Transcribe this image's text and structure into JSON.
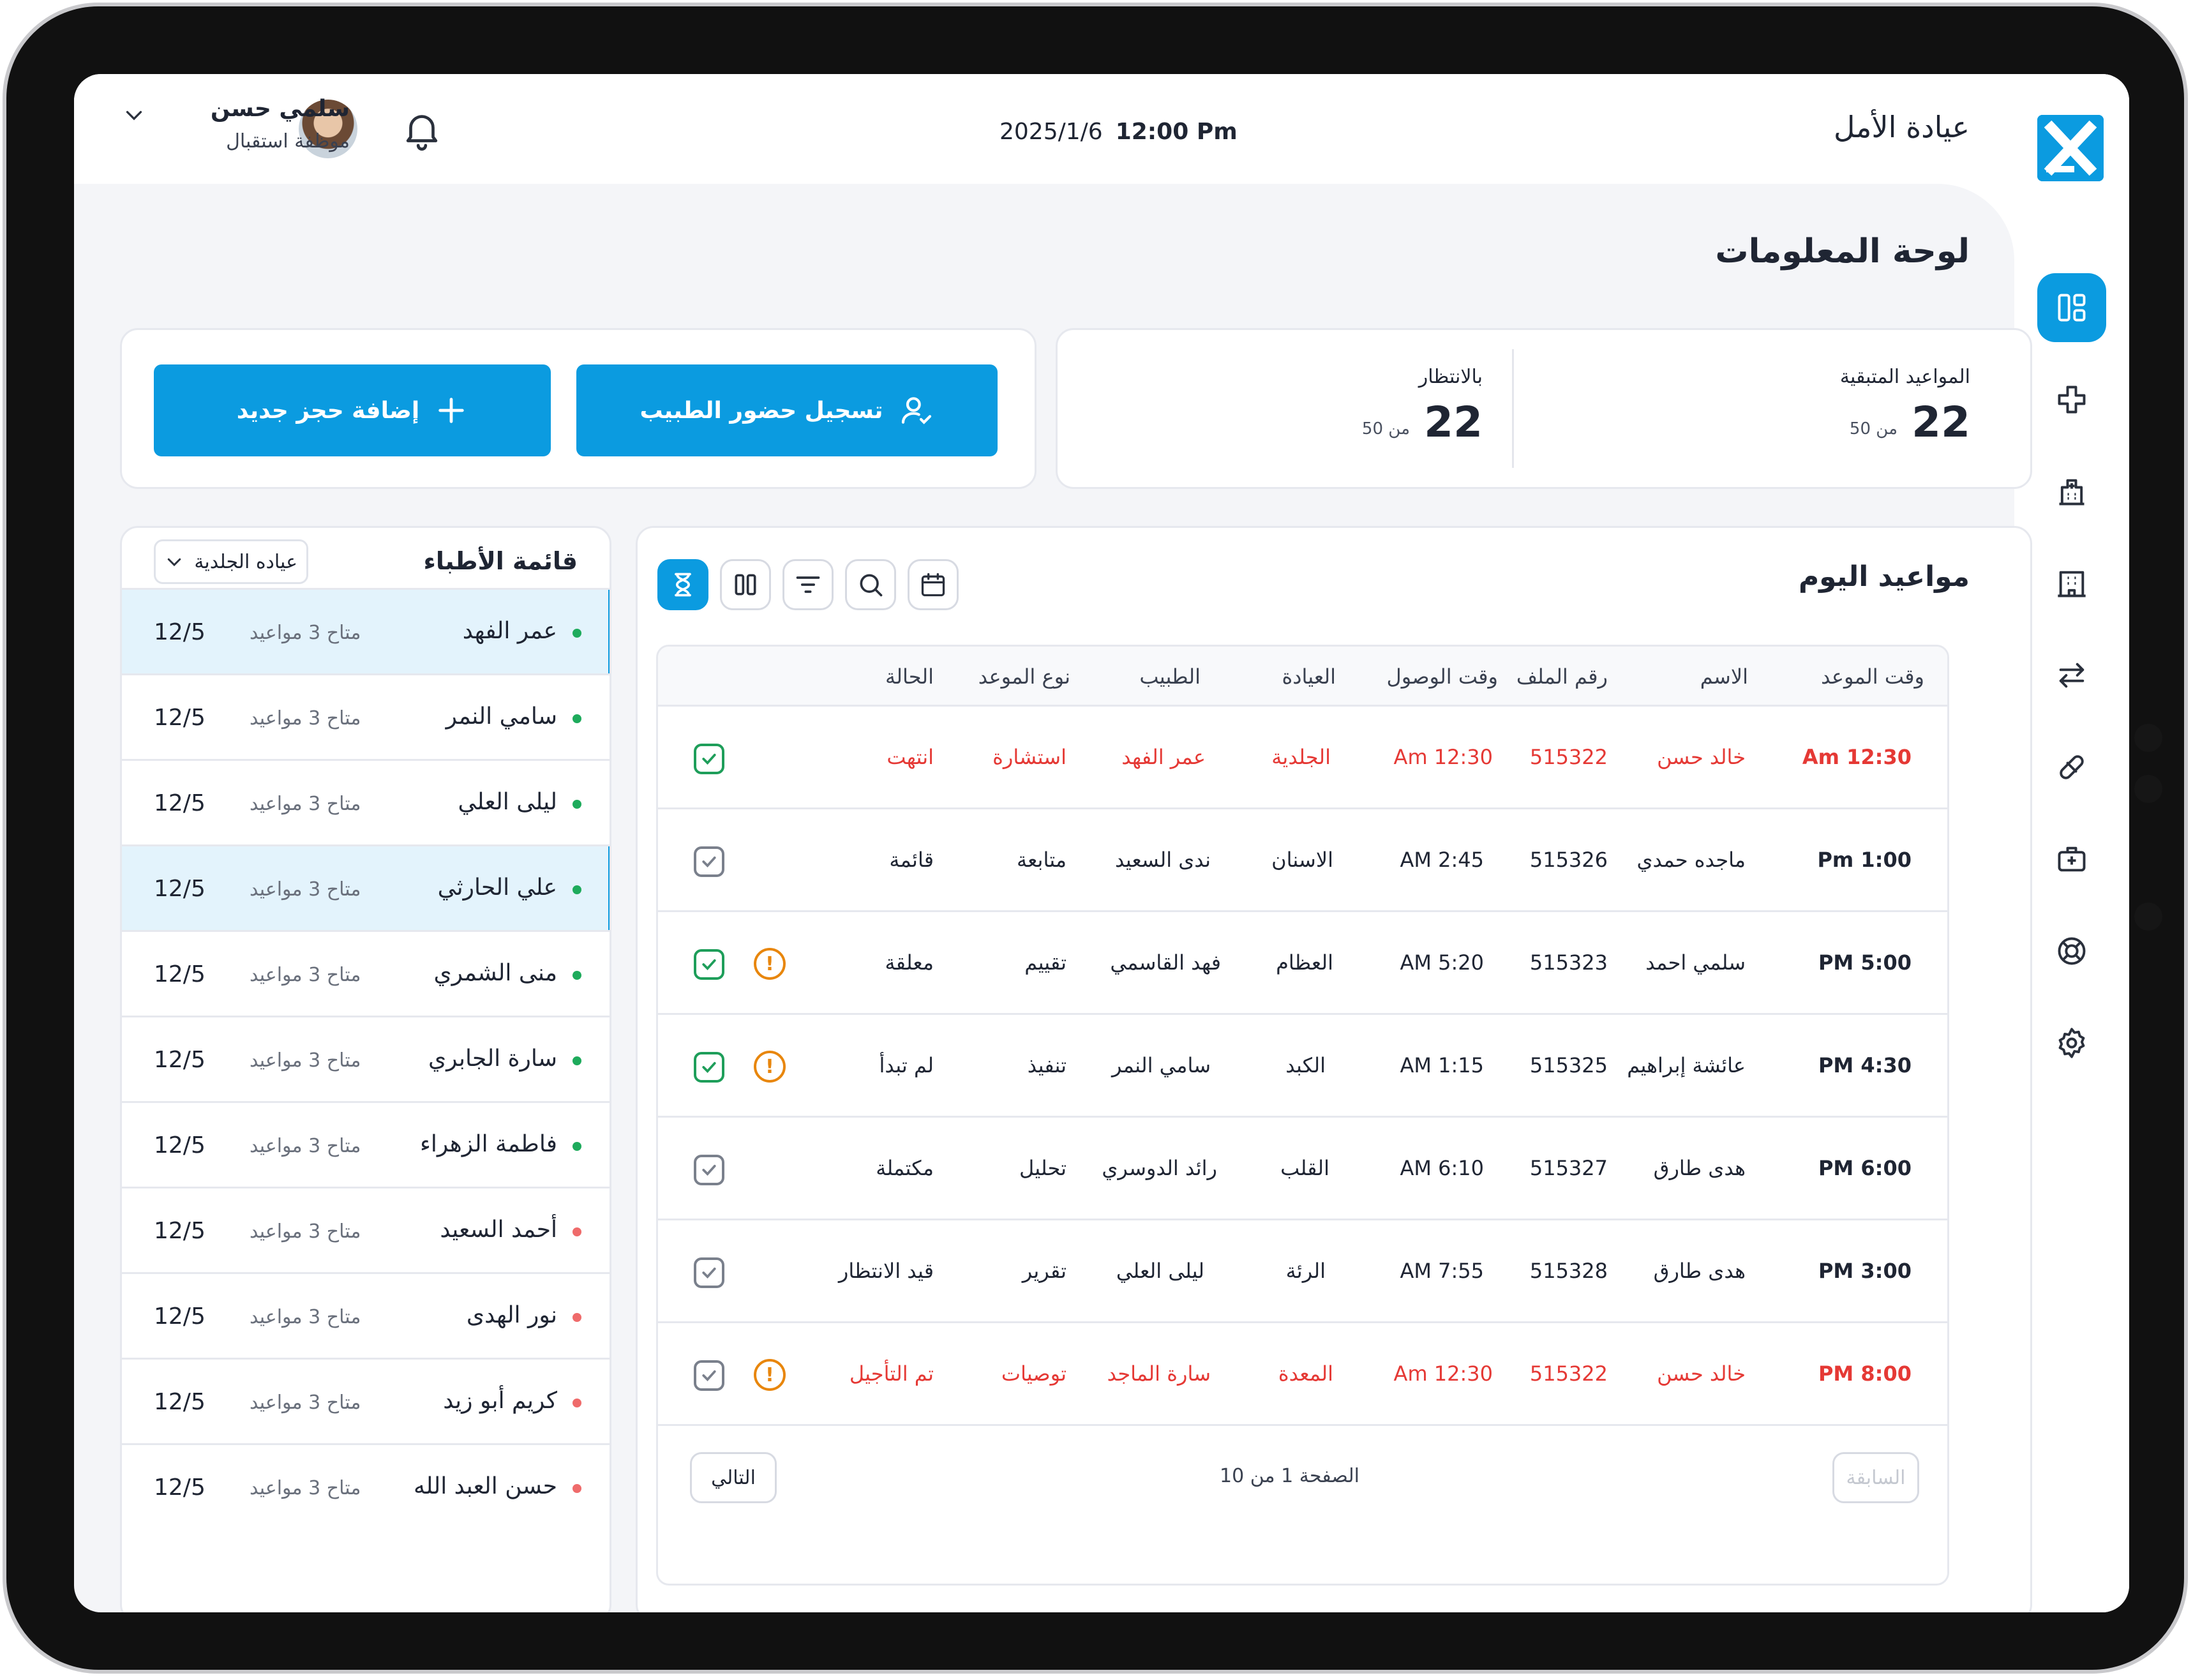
{
  "header": {
    "clinic_name": "عيادة الأمل",
    "date": "2025/1/6",
    "time": "12:00 Pm",
    "user_name": "سلمي حسن",
    "user_role": "موظفة استقبال"
  },
  "sidebar": {
    "items": [
      {
        "icon": "dashboard-icon",
        "active": true
      },
      {
        "icon": "medical-cross-icon",
        "active": false
      },
      {
        "icon": "hospital-icon",
        "active": false
      },
      {
        "icon": "building-icon",
        "active": false
      },
      {
        "icon": "transfer-arrows-icon",
        "active": false
      },
      {
        "icon": "pill-icon",
        "active": false
      },
      {
        "icon": "first-aid-kit-icon",
        "active": false
      },
      {
        "icon": "support-lifebuoy-icon",
        "active": false
      },
      {
        "icon": "settings-gear-icon",
        "active": false
      }
    ]
  },
  "page": {
    "title": "لوحة المعلومات"
  },
  "stats": {
    "remaining": {
      "label": "المواعيد المتبقية",
      "value": "22",
      "of": "من 50"
    },
    "waiting": {
      "label": "بالانتظار",
      "value": "22",
      "of": "من 50"
    }
  },
  "actions": {
    "doctor_attendance": "تسجيل حضور الطبيب",
    "new_booking": "إضافة حجز جديد"
  },
  "doctors": {
    "title": "قائمة الأطباء",
    "filter": "عياده الجلدية",
    "list": [
      {
        "name": "عمر الفهد",
        "availability": "متاح 3 مواعيد",
        "date": "12/5",
        "status": "available",
        "selected": true
      },
      {
        "name": "سامي النمر",
        "availability": "متاح 3 مواعيد",
        "date": "12/5",
        "status": "available",
        "selected": false
      },
      {
        "name": "ليلى العلي",
        "availability": "متاح 3 مواعيد",
        "date": "12/5",
        "status": "available",
        "selected": false
      },
      {
        "name": "علي الحارثي",
        "availability": "متاح 3 مواعيد",
        "date": "12/5",
        "status": "available",
        "selected": true
      },
      {
        "name": "منى الشمري",
        "availability": "متاح 3 مواعيد",
        "date": "12/5",
        "status": "available",
        "selected": false
      },
      {
        "name": "سارة الجابري",
        "availability": "متاح 3 مواعيد",
        "date": "12/5",
        "status": "available",
        "selected": false
      },
      {
        "name": "فاطمة الزهراء",
        "availability": "متاح 3 مواعيد",
        "date": "12/5",
        "status": "available",
        "selected": false
      },
      {
        "name": "أحمد السعيد",
        "availability": "متاح 3 مواعيد",
        "date": "12/5",
        "status": "unavailable",
        "selected": false
      },
      {
        "name": "نور الهدى",
        "availability": "متاح 3 مواعيد",
        "date": "12/5",
        "status": "unavailable",
        "selected": false
      },
      {
        "name": "كريم أبو زيد",
        "availability": "متاح 3 مواعيد",
        "date": "12/5",
        "status": "unavailable",
        "selected": false
      },
      {
        "name": "حسن العبد الله",
        "availability": "متاح 3 مواعيد",
        "date": "12/5",
        "status": "unavailable",
        "selected": false
      }
    ]
  },
  "appointments": {
    "title": "مواعيد اليوم",
    "columns": [
      "وقت الموعد",
      "الاسم",
      "رقم الملف",
      "وقت الوصول",
      "العيادة",
      "الطبيب",
      "نوع الموعد",
      "الحالة"
    ],
    "rows": [
      {
        "time": "12:30 Am",
        "name": "خالد حسن",
        "file": "515322",
        "arrival": "12:30 Am",
        "clinic": "الجلدية",
        "doctor": "عمر الفهد",
        "type": "استشارة",
        "status": "انتهت",
        "urgent": true,
        "checked": true,
        "warning": false
      },
      {
        "time": "1:00 Pm",
        "name": "ماجده حمدي",
        "file": "515326",
        "arrival": "2:45 AM",
        "clinic": "الاسنان",
        "doctor": "ندى السعيد",
        "type": "متابعة",
        "status": "قائمة",
        "urgent": false,
        "checked": false,
        "warning": false
      },
      {
        "time": "5:00 PM",
        "name": "سلمي احمد",
        "file": "515323",
        "arrival": "5:20 AM",
        "clinic": "العظام",
        "doctor": "فهد القاسمي",
        "type": "تقييم",
        "status": "معلقة",
        "urgent": false,
        "checked": true,
        "warning": true
      },
      {
        "time": "4:30 PM",
        "name": "عائشة إبراهيم",
        "file": "515325",
        "arrival": "1:15 AM",
        "clinic": "الكبد",
        "doctor": "سامي النمر",
        "type": "تنفيذ",
        "status": "لم تبدأ",
        "urgent": false,
        "checked": true,
        "warning": true
      },
      {
        "time": "6:00 PM",
        "name": "هدى طارق",
        "file": "515327",
        "arrival": "6:10 AM",
        "clinic": "القلب",
        "doctor": "رائد الدوسري",
        "type": "تحليل",
        "status": "مكتملة",
        "urgent": false,
        "checked": false,
        "warning": false
      },
      {
        "time": "3:00 PM",
        "name": "هدى طارق",
        "file": "515328",
        "arrival": "7:55 AM",
        "clinic": "الرئة",
        "doctor": "ليلى العلي",
        "type": "تقرير",
        "status": "قيد الانتظار",
        "urgent": false,
        "checked": false,
        "warning": false
      },
      {
        "time": "8:00 PM",
        "name": "خالد حسن",
        "file": "515322",
        "arrival": "12:30 Am",
        "clinic": "المعدة",
        "doctor": "سارة الماجد",
        "type": "توصيات",
        "status": "تم التأجيل",
        "urgent": true,
        "checked": false,
        "warning": true
      }
    ],
    "pagination": {
      "prev": "السابقة",
      "next": "التالي",
      "info": "الصفحة 1 من 10"
    }
  },
  "colors": {
    "accent": "#0b9be0",
    "urgent": "#e53935",
    "available": "#1eab5c",
    "unavailable": "#ef6b6b",
    "warning": "#e8860c"
  }
}
